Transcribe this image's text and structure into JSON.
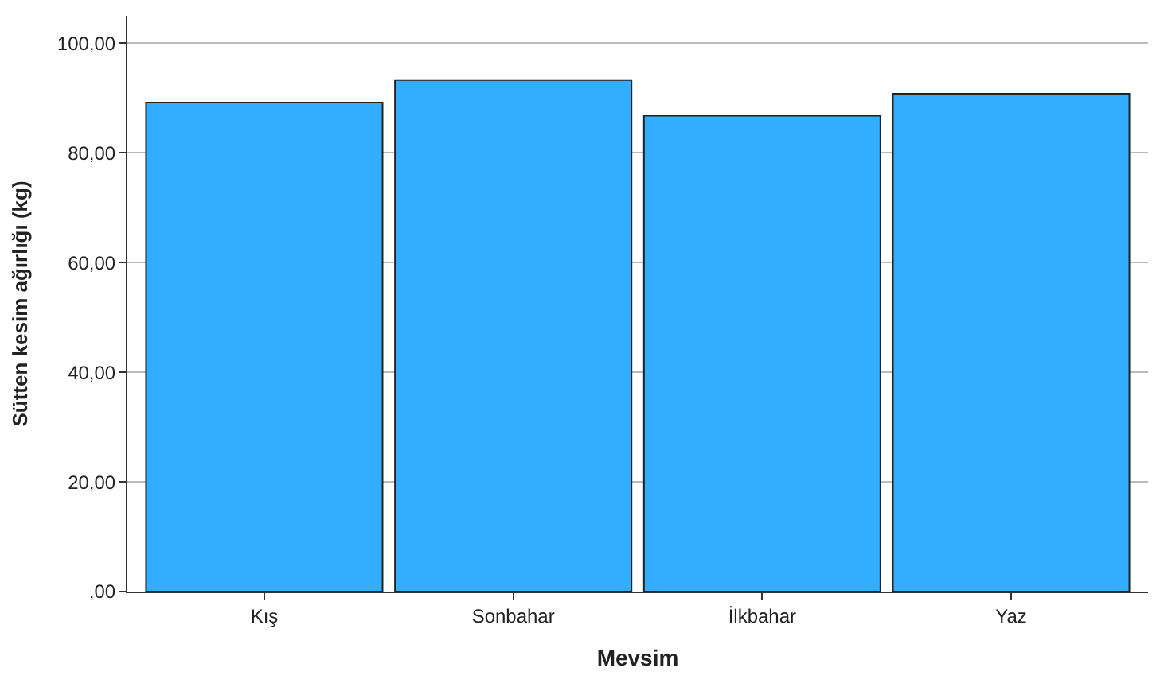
{
  "chart_data": {
    "type": "bar",
    "xlabel": "Mevsim",
    "ylabel": "Sütten kesim ağırlığı (kg)",
    "categories": [
      "Kış",
      "Sonbahar",
      "İlkbahar",
      "Yaz"
    ],
    "values": [
      89.2,
      93.3,
      86.8,
      90.8
    ],
    "color": "#33adff",
    "ylim": [
      0,
      105
    ],
    "yticks": [
      {
        "value": 0,
        "label": ",00"
      },
      {
        "value": 20,
        "label": "20,00"
      },
      {
        "value": 40,
        "label": "40,00"
      },
      {
        "value": 60,
        "label": "60,00"
      },
      {
        "value": 80,
        "label": "80,00"
      },
      {
        "value": 100,
        "label": "100,00"
      }
    ],
    "grid": "y",
    "legend": false
  }
}
